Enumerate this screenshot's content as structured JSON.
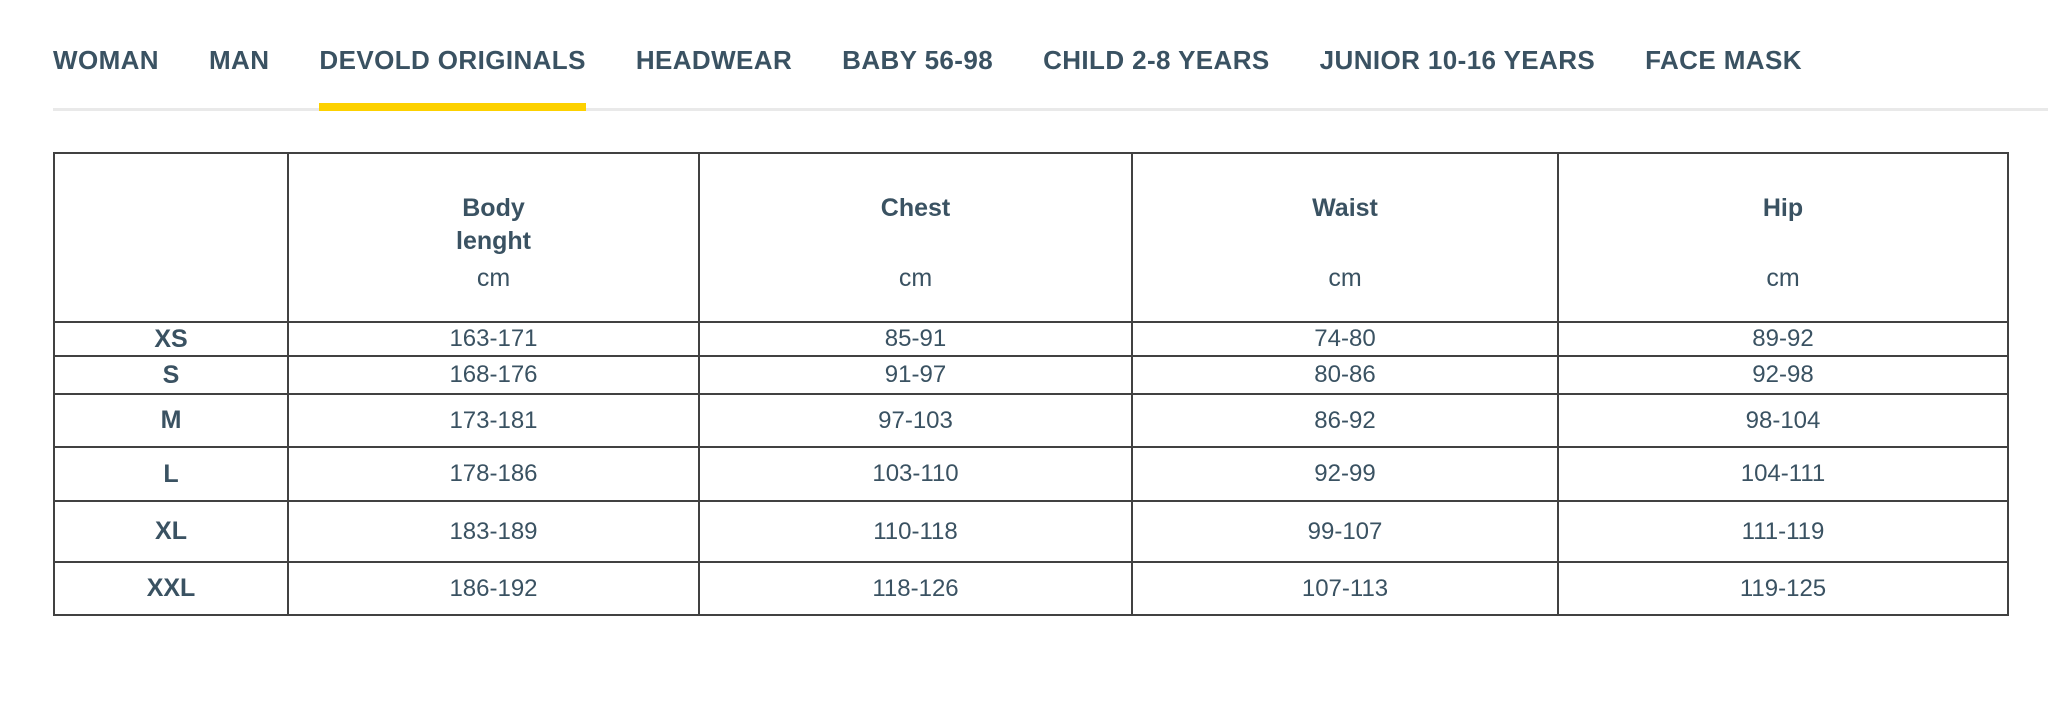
{
  "tabs": {
    "items": [
      {
        "label": "WOMAN",
        "active": false
      },
      {
        "label": "MAN",
        "active": false
      },
      {
        "label": "DEVOLD ORIGINALS",
        "active": true
      },
      {
        "label": "HEADWEAR",
        "active": false
      },
      {
        "label": "BABY 56-98",
        "active": false
      },
      {
        "label": "CHILD 2-8 YEARS",
        "active": false
      },
      {
        "label": "JUNIOR 10-16 YEARS",
        "active": false
      },
      {
        "label": "FACE MASK",
        "active": false
      }
    ]
  },
  "table": {
    "columns": [
      {
        "title_line1": "",
        "title_line2": "",
        "unit": ""
      },
      {
        "title_line1": "Body",
        "title_line2": "lenght",
        "unit": "cm"
      },
      {
        "title_line1": "Chest",
        "title_line2": "",
        "unit": "cm"
      },
      {
        "title_line1": "Waist",
        "title_line2": "",
        "unit": "cm"
      },
      {
        "title_line1": "Hip",
        "title_line2": "",
        "unit": "cm"
      }
    ],
    "rows": [
      {
        "size": "XS",
        "values": [
          "163-171",
          "85-91",
          "74-80",
          "89-92"
        ]
      },
      {
        "size": "S",
        "values": [
          "168-176",
          "91-97",
          "80-86",
          "92-98"
        ]
      },
      {
        "size": "M",
        "values": [
          "173-181",
          "97-103",
          "86-92",
          "98-104"
        ]
      },
      {
        "size": "L",
        "values": [
          "178-186",
          "103-110",
          "92-99",
          "104-111"
        ]
      },
      {
        "size": "XL",
        "values": [
          "183-189",
          "110-118",
          "99-107",
          "111-119"
        ]
      },
      {
        "size": "XXL",
        "values": [
          "186-192",
          "118-126",
          "107-113",
          "119-125"
        ]
      }
    ]
  },
  "colors": {
    "accent_yellow": "#FDD100",
    "text_slate": "#3A5262",
    "border_dark": "#414141",
    "rule_gray": "#E9E9E9"
  }
}
